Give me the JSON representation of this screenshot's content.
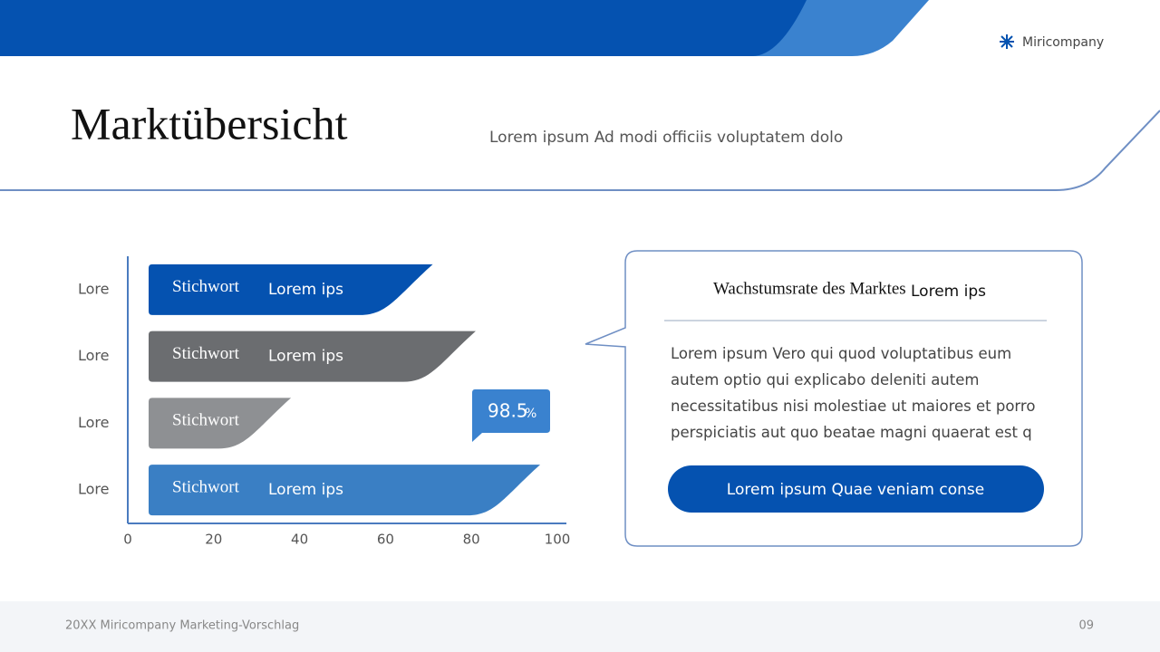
{
  "header": {
    "brand": "Miricompany",
    "title": "Marktübersicht",
    "subtitle": "Lorem ipsum Ad modi officiis voluptatem dolo"
  },
  "chart_data": {
    "type": "hbar",
    "categories": [
      "Lore",
      "Lore",
      "Lore",
      "Lore"
    ],
    "values": [
      71,
      81,
      38,
      96
    ],
    "colors": [
      "#0552b0",
      "#6b6d70",
      "#8e9093",
      "#3a7fc4"
    ],
    "bar_labels": [
      {
        "keyword": "Stichwort",
        "text": "Lorem ips"
      },
      {
        "keyword": "Stichwort",
        "text": "Lorem ips"
      },
      {
        "keyword": "Stichwort"
      },
      {
        "keyword": "Stichwort",
        "text": "Lorem ips"
      }
    ],
    "xlim": [
      0,
      100
    ],
    "xticks": [
      0,
      20,
      40,
      60,
      80,
      100
    ],
    "callout": {
      "value": "98.5",
      "unit": "%"
    }
  },
  "panel": {
    "heading": "Wachstumsrate des Marktes",
    "heading_overlay": "Lorem ips",
    "body": "Lorem ipsum Vero qui quod voluptatibus eum autem optio qui explicabo deleniti autem necessitatibus nisi molestiae ut maiores et porro perspiciatis aut quo beatae magni quaerat est q",
    "button": "Lorem ipsum Quae veniam conse"
  },
  "footer": {
    "text": "20XX Miricompany Marketing-Vorschlag",
    "page": "09"
  }
}
